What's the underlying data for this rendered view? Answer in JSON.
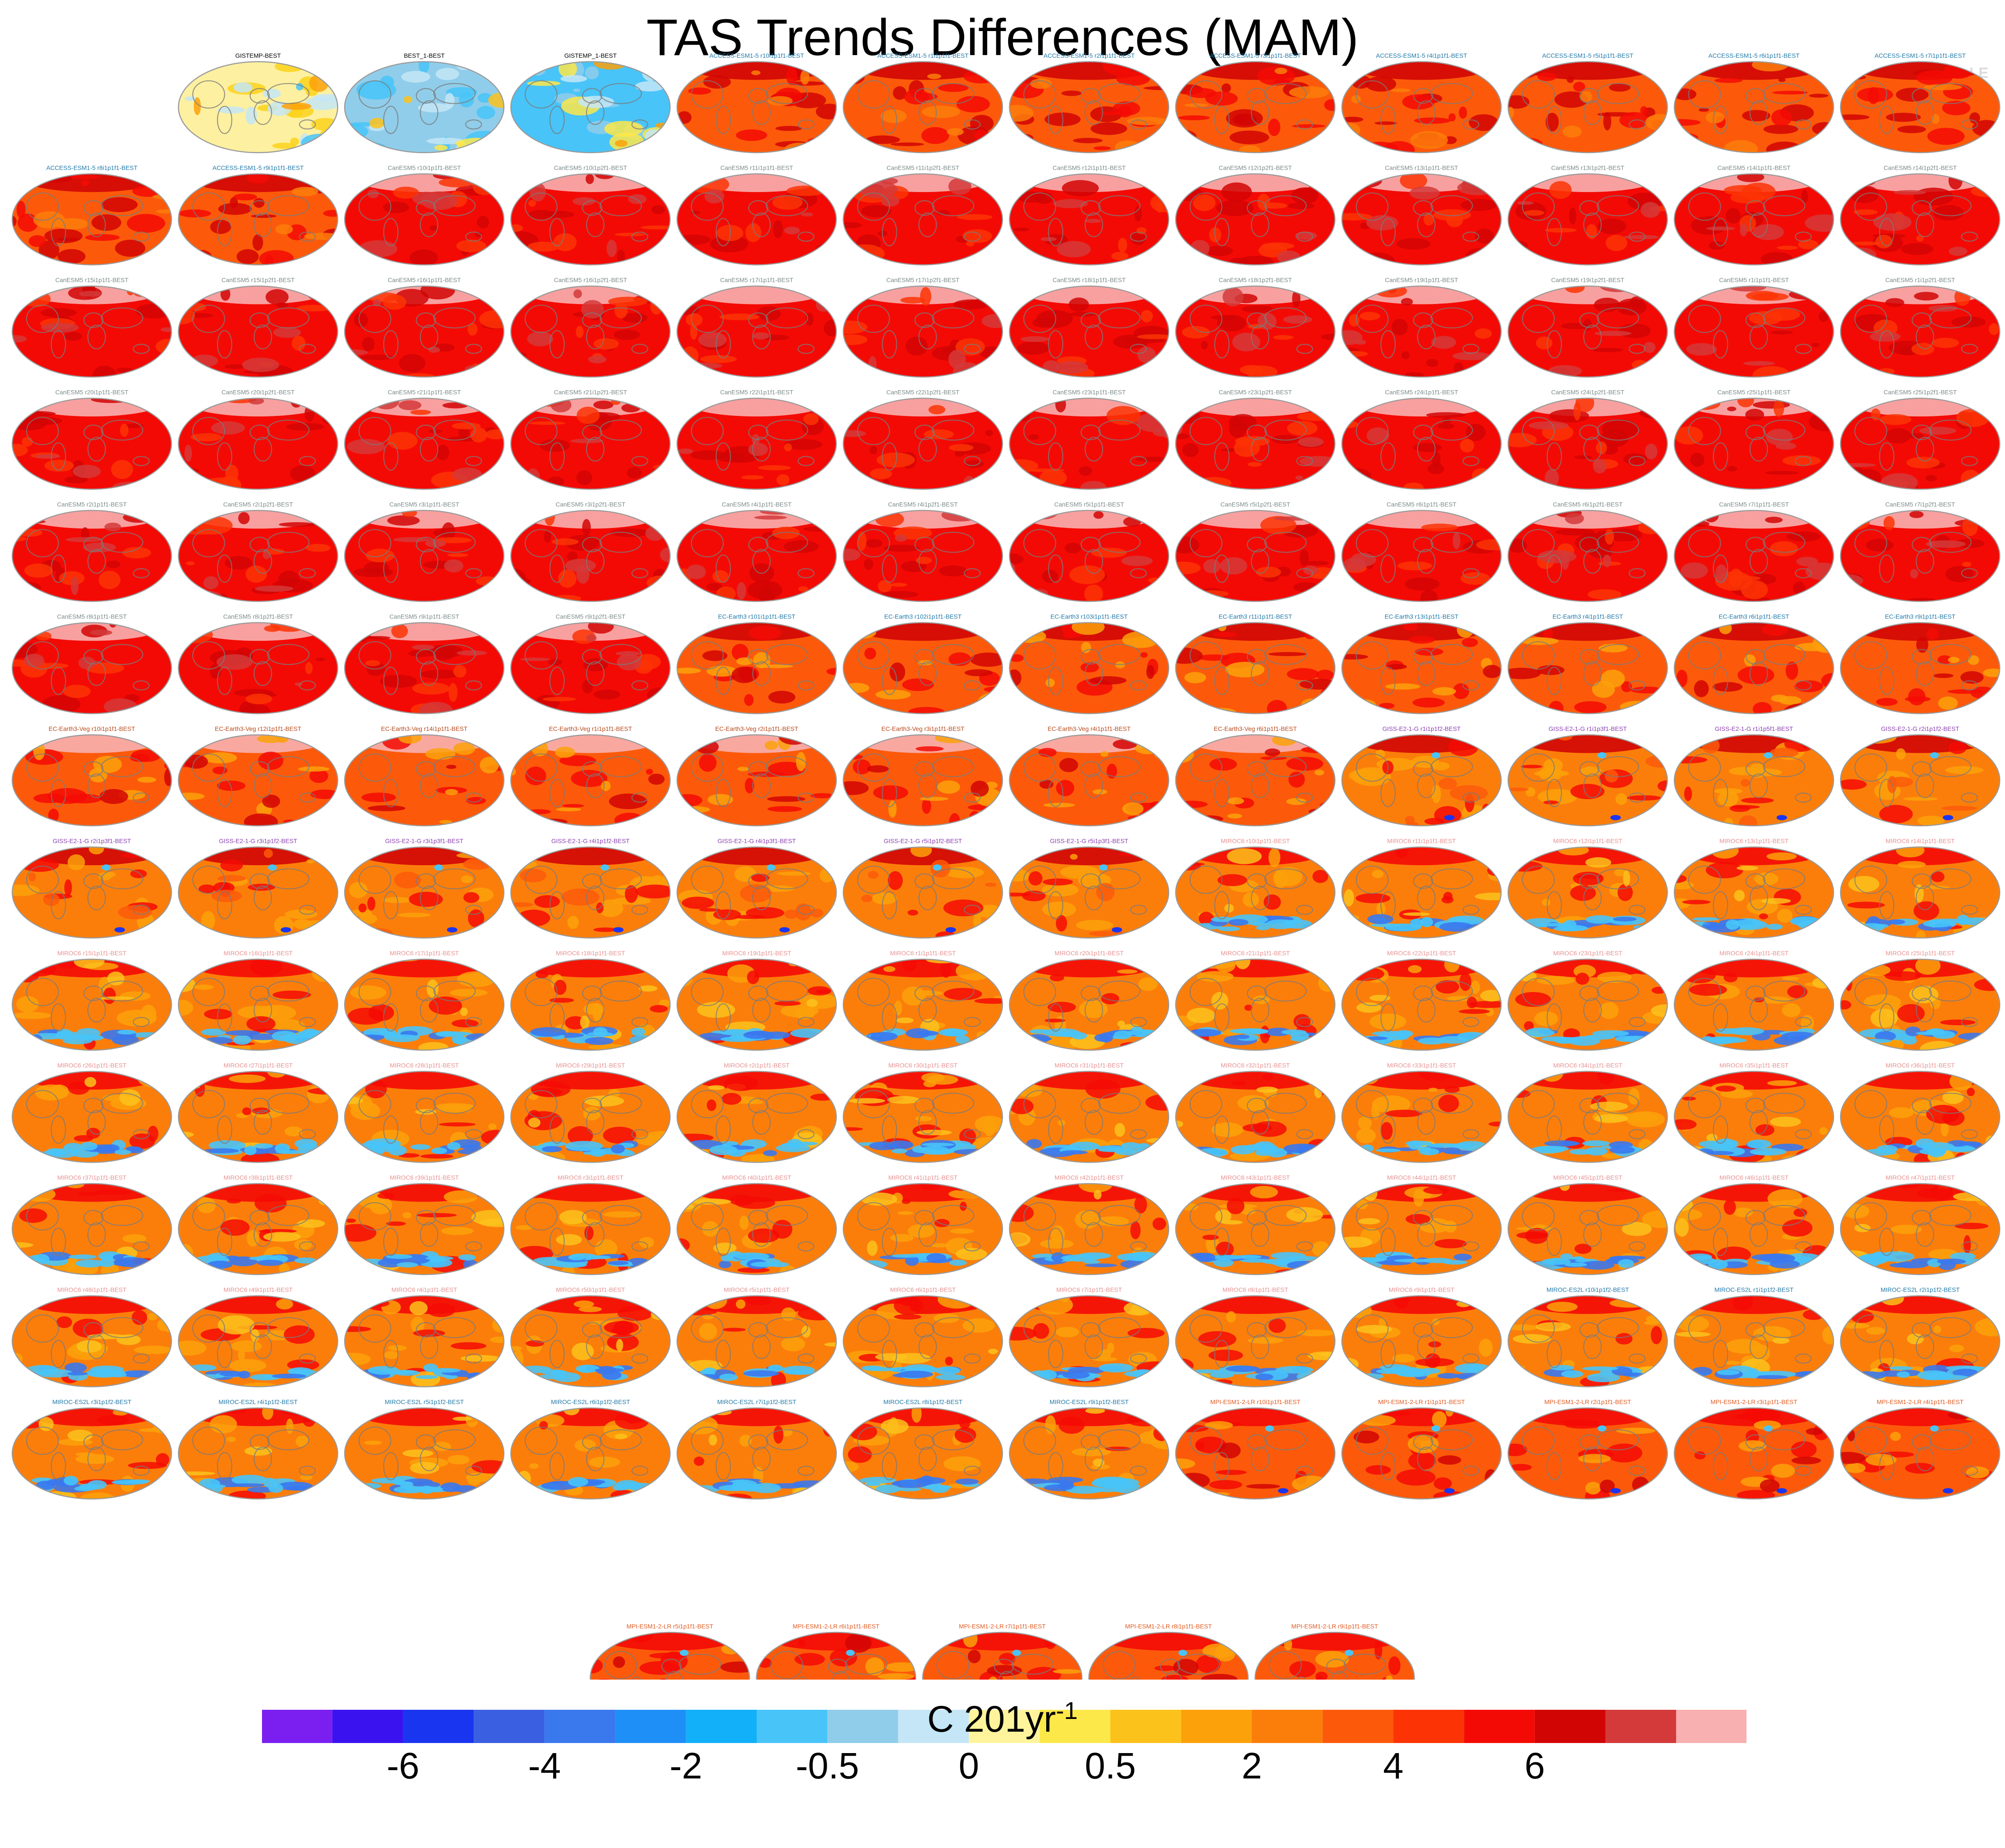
{
  "figure": {
    "title": "TAS Trends Differences (MAM)",
    "copyright": "© CVDP-LE"
  },
  "chart_data": {
    "type": "panel_maps",
    "projection": "Robinson global map",
    "panel_titles": [
      "GISTEMP-BEST",
      "BEST_1-BEST",
      "GISTEMP_1-BEST",
      "ACCESS-ESM1-5 r10i1p1f1-BEST",
      "ACCESS-ESM1-5 r1i1p1f1-BEST",
      "ACCESS-ESM1-5 r2i1p1f1-BEST",
      "ACCESS-ESM1-5 r3i1p1f1-BEST",
      "ACCESS-ESM1-5 r4i1p1f1-BEST",
      "ACCESS-ESM1-5 r5i1p1f1-BEST",
      "ACCESS-ESM1-5 r6i1p1f1-BEST",
      "ACCESS-ESM1-5 r7i1p1f1-BEST",
      "ACCESS-ESM1-5 r8i1p1f1-BEST",
      "ACCESS-ESM1-5 r9i1p1f1-BEST",
      "CanESM5 r10i1p1f1-BEST",
      "CanESM5 r10i1p2f1-BEST",
      "CanESM5 r11i1p1f1-BEST",
      "CanESM5 r11i1p2f1-BEST",
      "CanESM5 r12i1p1f1-BEST",
      "CanESM5 r12i1p2f1-BEST",
      "CanESM5 r13i1p1f1-BEST",
      "CanESM5 r13i1p2f1-BEST",
      "CanESM5 r14i1p1f1-BEST",
      "CanESM5 r14i1p2f1-BEST",
      "CanESM5 r15i1p1f1-BEST",
      "CanESM5 r15i1p2f1-BEST",
      "CanESM5 r16i1p1f1-BEST",
      "CanESM5 r16i1p2f1-BEST",
      "CanESM5 r17i1p1f1-BEST",
      "CanESM5 r17i1p2f1-BEST",
      "CanESM5 r18i1p1f1-BEST",
      "CanESM5 r18i1p2f1-BEST",
      "CanESM5 r19i1p1f1-BEST",
      "CanESM5 r19i1p2f1-BEST",
      "CanESM5 r1i1p1f1-BEST",
      "CanESM5 r1i1p2f1-BEST",
      "CanESM5 r20i1p1f1-BEST",
      "CanESM5 r20i1p2f1-BEST",
      "CanESM5 r21i1p1f1-BEST",
      "CanESM5 r21i1p2f1-BEST",
      "CanESM5 r22i1p1f1-BEST",
      "CanESM5 r22i1p2f1-BEST",
      "CanESM5 r23i1p1f1-BEST",
      "CanESM5 r23i1p2f1-BEST",
      "CanESM5 r24i1p1f1-BEST",
      "CanESM5 r24i1p2f1-BEST",
      "CanESM5 r25i1p1f1-BEST",
      "CanESM5 r25i1p2f1-BEST",
      "CanESM5 r2i1p1f1-BEST",
      "CanESM5 r2i1p2f1-BEST",
      "CanESM5 r3i1p1f1-BEST",
      "CanESM5 r3i1p2f1-BEST",
      "CanESM5 r4i1p1f1-BEST",
      "CanESM5 r4i1p2f1-BEST",
      "CanESM5 r5i1p1f1-BEST",
      "CanESM5 r5i1p2f1-BEST",
      "CanESM5 r6i1p1f1-BEST",
      "CanESM5 r6i1p2f1-BEST",
      "CanESM5 r7i1p1f1-BEST",
      "CanESM5 r7i1p2f1-BEST",
      "CanESM5 r8i1p1f1-BEST",
      "CanESM5 r8i1p2f1-BEST",
      "CanESM5 r9i1p1f1-BEST",
      "CanESM5 r9i1p2f1-BEST",
      "EC-Earth3 r101i1p1f1-BEST",
      "EC-Earth3 r102i1p1f1-BEST",
      "EC-Earth3 r103i1p1f1-BEST",
      "EC-Earth3 r11i1p1f1-BEST",
      "EC-Earth3 r13i1p1f1-BEST",
      "EC-Earth3 r4i1p1f1-BEST",
      "EC-Earth3 r6i1p1f1-BEST",
      "EC-Earth3 r9i1p1f1-BEST",
      "EC-Earth3-Veg r10i1p1f1-BEST",
      "EC-Earth3-Veg r12i1p1f1-BEST",
      "EC-Earth3-Veg r14i1p1f1-BEST",
      "EC-Earth3-Veg r1i1p1f1-BEST",
      "EC-Earth3-Veg r2i1p1f1-BEST",
      "EC-Earth3-Veg r3i1p1f1-BEST",
      "EC-Earth3-Veg r4i1p1f1-BEST",
      "EC-Earth3-Veg r6i1p1f1-BEST",
      "GISS-E2-1-G r1i1p1f2-BEST",
      "GISS-E2-1-G r1i1p3f1-BEST",
      "GISS-E2-1-G r1i1p5f1-BEST",
      "GISS-E2-1-G r2i1p1f2-BEST",
      "GISS-E2-1-G r2i1p3f1-BEST",
      "GISS-E2-1-G r3i1p1f2-BEST",
      "GISS-E2-1-G r3i1p3f1-BEST",
      "GISS-E2-1-G r4i1p1f2-BEST",
      "GISS-E2-1-G r4i1p3f1-BEST",
      "GISS-E2-1-G r5i1p1f2-BEST",
      "GISS-E2-1-G r5i1p3f1-BEST",
      "MIROC6 r10i1p1f1-BEST",
      "MIROC6 r11i1p1f1-BEST",
      "MIROC6 r12i1p1f1-BEST",
      "MIROC6 r13i1p1f1-BEST",
      "MIROC6 r14i1p1f1-BEST",
      "MIROC6 r15i1p1f1-BEST",
      "MIROC6 r16i1p1f1-BEST",
      "MIROC6 r17i1p1f1-BEST",
      "MIROC6 r18i1p1f1-BEST",
      "MIROC6 r19i1p1f1-BEST",
      "MIROC6 r1i1p1f1-BEST",
      "MIROC6 r20i1p1f1-BEST",
      "MIROC6 r21i1p1f1-BEST",
      "MIROC6 r22i1p1f1-BEST",
      "MIROC6 r23i1p1f1-BEST",
      "MIROC6 r24i1p1f1-BEST",
      "MIROC6 r25i1p1f1-BEST",
      "MIROC6 r26i1p1f1-BEST",
      "MIROC6 r27i1p1f1-BEST",
      "MIROC6 r28i1p1f1-BEST",
      "MIROC6 r29i1p1f1-BEST",
      "MIROC6 r2i1p1f1-BEST",
      "MIROC6 r30i1p1f1-BEST",
      "MIROC6 r31i1p1f1-BEST",
      "MIROC6 r32i1p1f1-BEST",
      "MIROC6 r33i1p1f1-BEST",
      "MIROC6 r34i1p1f1-BEST",
      "MIROC6 r35i1p1f1-BEST",
      "MIROC6 r36i1p1f1-BEST",
      "MIROC6 r37i1p1f1-BEST",
      "MIROC6 r38i1p1f1-BEST",
      "MIROC6 r39i1p1f1-BEST",
      "MIROC6 r3i1p1f1-BEST",
      "MIROC6 r40i1p1f1-BEST",
      "MIROC6 r41i1p1f1-BEST",
      "MIROC6 r42i1p1f1-BEST",
      "MIROC6 r43i1p1f1-BEST",
      "MIROC6 r44i1p1f1-BEST",
      "MIROC6 r45i1p1f1-BEST",
      "MIROC6 r46i1p1f1-BEST",
      "MIROC6 r47i1p1f1-BEST",
      "MIROC6 r48i1p1f1-BEST",
      "MIROC6 r49i1p1f1-BEST",
      "MIROC6 r4i1p1f1-BEST",
      "MIROC6 r50i1p1f1-BEST",
      "MIROC6 r5i1p1f1-BEST",
      "MIROC6 r6i1p1f1-BEST",
      "MIROC6 r7i1p1f1-BEST",
      "MIROC6 r8i1p1f1-BEST",
      "MIROC6 r9i1p1f1-BEST",
      "MIROC-ES2L r10i1p1f2-BEST",
      "MIROC-ES2L r1i1p1f2-BEST",
      "MIROC-ES2L r2i1p1f2-BEST",
      "MIROC-ES2L r3i1p1f2-BEST",
      "MIROC-ES2L r4i1p1f2-BEST",
      "MIROC-ES2L r5i1p1f2-BEST",
      "MIROC-ES2L r6i1p1f2-BEST",
      "MIROC-ES2L r7i1p1f2-BEST",
      "MIROC-ES2L r8i1p1f2-BEST",
      "MIROC-ES2L r9i1p1f2-BEST",
      "MPI-ESM1-2-LR r10i1p1f1-BEST",
      "MPI-ESM1-2-LR r1i1p1f1-BEST",
      "MPI-ESM1-2-LR r2i1p1f1-BEST",
      "MPI-ESM1-2-LR r3i1p1f1-BEST",
      "MPI-ESM1-2-LR r4i1p1f1-BEST",
      "MPI-ESM1-2-LR r5i1p1f1-BEST",
      "MPI-ESM1-2-LR r6i1p1f1-BEST",
      "MPI-ESM1-2-LR r7i1p1f1-BEST",
      "MPI-ESM1-2-LR r8i1p1f1-BEST",
      "MPI-ESM1-2-LR r9i1p1f1-BEST"
    ],
    "title_colors": {
      "obs": "#000000",
      "ACCESS-ESM1-5": "#1f78a8",
      "CanESM5": "#7b8a8a",
      "EC-Earth3": "#1f78a8",
      "EC-Earth3-Veg": "#b8481a",
      "GISS-E2-1-G": "#8a3fb0",
      "MIROC6": "#e89090",
      "MIROC-ES2L": "#1f78a8",
      "MPI-ESM1-2-LR": "#e05a20"
    },
    "colorbar": {
      "label": "C 201yr",
      "label_superscript": "-1",
      "tick_labels": [
        "-6",
        "-4",
        "-2",
        "-0.5",
        "0",
        "0.5",
        "2",
        "4",
        "6"
      ],
      "colors": [
        "#7a1ff0",
        "#3a12f0",
        "#1a35f0",
        "#3a5fe0",
        "#3a78ee",
        "#1f8ff8",
        "#12b0f8",
        "#48c4f8",
        "#90cdea",
        "#c4e6f6",
        "#fff49c",
        "#fde84a",
        "#fbc21c",
        "#fca10a",
        "#fc7e0a",
        "#fc5a0a",
        "#fc3405",
        "#f40a05",
        "#d20505",
        "#d43a3a",
        "#f8b0b0"
      ]
    }
  }
}
